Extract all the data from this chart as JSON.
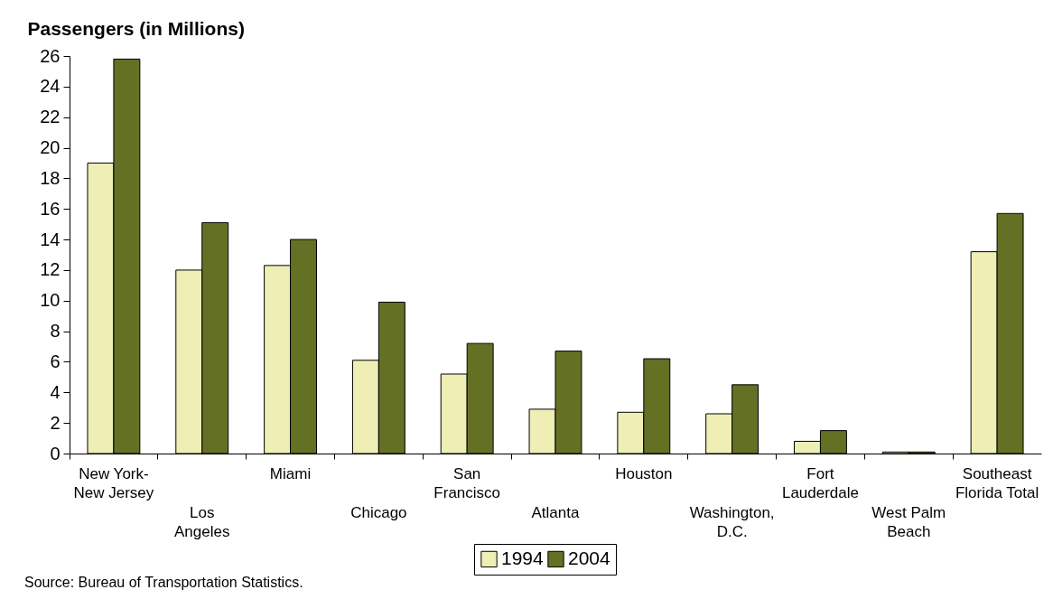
{
  "chart_data": {
    "type": "bar",
    "ylabel": "Passengers (in Millions)",
    "categories": [
      "New York-\nNew Jersey",
      "Los\nAngeles",
      "Miami",
      "Chicago",
      "San\nFrancisco",
      "Atlanta",
      "Houston",
      "Washington,\nD.C.",
      "Fort\nLauderdale",
      "West Palm\nBeach",
      "Southeast\nFlorida Total"
    ],
    "series": [
      {
        "name": "1994",
        "color": "#eeeeb5",
        "values": [
          19.0,
          12.0,
          12.3,
          6.1,
          5.2,
          2.9,
          2.7,
          2.6,
          0.8,
          0.1,
          13.2
        ]
      },
      {
        "name": "2004",
        "color": "#647024",
        "values": [
          25.8,
          15.1,
          14.0,
          9.9,
          7.2,
          6.7,
          6.2,
          4.5,
          1.5,
          0.1,
          15.7
        ]
      }
    ],
    "ylim": [
      0,
      26
    ],
    "yticks": [
      0,
      2,
      4,
      6,
      8,
      10,
      12,
      14,
      16,
      18,
      20,
      22,
      24,
      26
    ],
    "legend": "bottom",
    "annotations": [
      "Source:  Bureau of Transportation Statistics."
    ]
  }
}
